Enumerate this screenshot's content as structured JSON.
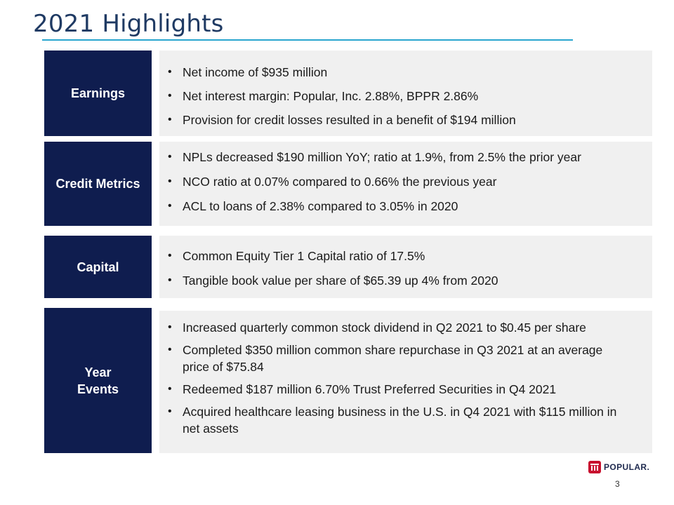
{
  "slide": {
    "title": "2021 Highlights",
    "page_number": "3"
  },
  "logo": {
    "text": "POPULAR."
  },
  "sections": [
    {
      "label": "Earnings",
      "bullets": [
        "Net income of $935 million",
        "Net interest margin: Popular, Inc. 2.88%, BPPR 2.86%",
        "Provision for credit losses resulted in a benefit of $194 million"
      ]
    },
    {
      "label": "Credit Metrics",
      "bullets": [
        "NPLs decreased $190 million YoY; ratio at 1.9%, from 2.5% the prior year",
        "NCO ratio at 0.07% compared to 0.66% the previous year",
        "ACL to loans of 2.38% compared to 3.05% in 2020"
      ]
    },
    {
      "label": "Capital",
      "bullets": [
        "Common Equity Tier 1 Capital ratio of 17.5%",
        "Tangible book value per share of $65.39 up 4% from 2020"
      ]
    },
    {
      "label_line1": "Year",
      "label_line2": "Events",
      "bullets": [
        "Increased quarterly common stock dividend in Q2 2021 to $0.45 per share",
        "Completed $350 million common share repurchase in Q3 2021 at an average price of $75.84",
        "Redeemed $187 million 6.70% Trust Preferred Securities in Q4 2021",
        "Acquired healthcare leasing business in the U.S. in Q4 2021 with $115 million in net assets"
      ]
    }
  ],
  "colors": {
    "label_background": "#0f1d4f",
    "content_background": "#f0f0f0",
    "title_color": "#1f3a63",
    "title_rule": "#2aa6cf",
    "logo_red": "#c8102e"
  }
}
